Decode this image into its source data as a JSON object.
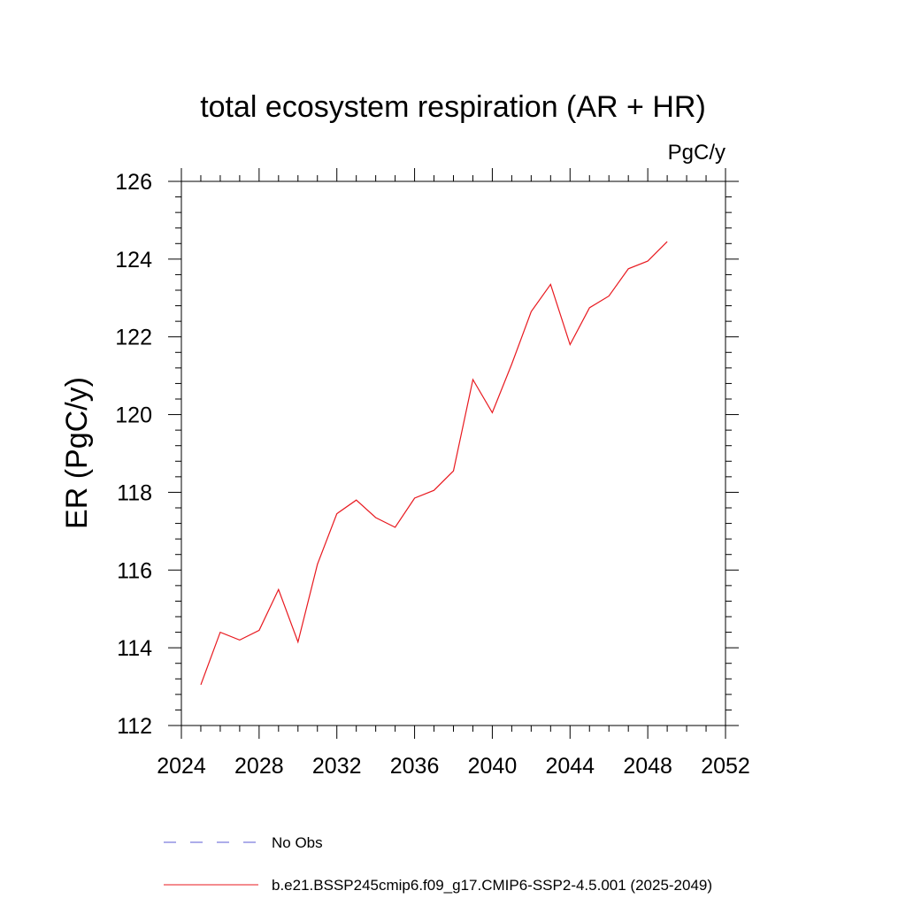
{
  "chart_data": {
    "type": "line",
    "title": "total ecosystem respiration (AR + HR)",
    "units_label": "PgC/y",
    "ylabel": "ER  (PgC/y)",
    "xlabel": "",
    "xlim": [
      2024,
      2052
    ],
    "ylim": [
      112,
      126
    ],
    "x_major_ticks": [
      2024,
      2028,
      2032,
      2036,
      2040,
      2044,
      2048,
      2052
    ],
    "x_tick_labels": [
      "2024",
      "2028",
      "2032",
      "2036",
      "2040",
      "2044",
      "2048",
      "2052"
    ],
    "y_major_ticks": [
      112,
      114,
      116,
      118,
      120,
      122,
      124,
      126
    ],
    "y_tick_labels": [
      "112",
      "114",
      "116",
      "118",
      "120",
      "122",
      "124",
      "126"
    ],
    "grid": false,
    "legend_position": "bottom",
    "legend": [
      {
        "label": "No Obs",
        "color": "#5b5bd6",
        "style": "dashed"
      },
      {
        "label": "b.e21.BSSP245cmip6.f09_g17.CMIP6-SSP2-4.5.001 (2025-2049)",
        "color": "#e8191f",
        "style": "solid"
      }
    ],
    "series": [
      {
        "color": "#e8191f",
        "x": [
          2025,
          2026,
          2027,
          2028,
          2029,
          2030,
          2031,
          2032,
          2033,
          2034,
          2035,
          2036,
          2037,
          2038,
          2039,
          2040,
          2041,
          2042,
          2043,
          2044,
          2045,
          2046,
          2047,
          2048,
          2049
        ],
        "values": [
          113.05,
          114.4,
          114.2,
          114.45,
          115.5,
          114.15,
          116.15,
          117.45,
          117.8,
          117.35,
          117.1,
          117.85,
          118.05,
          118.55,
          120.9,
          120.05,
          121.3,
          122.65,
          123.35,
          121.8,
          122.75,
          123.05,
          123.75,
          123.95,
          124.45
        ]
      }
    ]
  }
}
